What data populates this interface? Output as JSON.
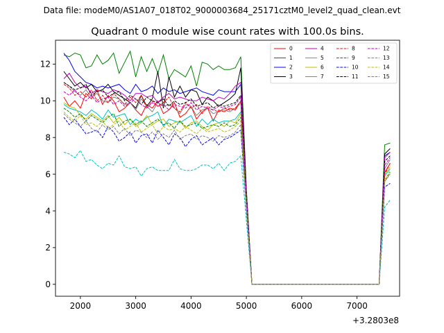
{
  "figure": {
    "suptitle": "Data file: modeM0/AS1A07_018T02_9000003684_25171cztM0_level2_quad_clean.evt"
  },
  "chart_data": {
    "type": "line",
    "title": "Quadrant 0 module wise count rates with 100.0s bins.",
    "xlabel": "",
    "ylabel": "",
    "x_offset_label": "+3.2803e8",
    "xlim": [
      1550,
      7770
    ],
    "ylim": [
      -0.65,
      13.3
    ],
    "xticks": [
      2000,
      3000,
      4000,
      5000,
      6000,
      7000
    ],
    "yticks": [
      0,
      2,
      4,
      6,
      8,
      10,
      12
    ],
    "legend": {
      "placement": "top-right",
      "columns": 4
    },
    "grid": false,
    "x": [
      1700,
      1800,
      1900,
      2000,
      2100,
      2200,
      2300,
      2400,
      2500,
      2600,
      2700,
      2800,
      2900,
      3000,
      3100,
      3200,
      3300,
      3400,
      3500,
      3600,
      3700,
      3800,
      3900,
      4000,
      4100,
      4200,
      4300,
      4400,
      4500,
      4600,
      4700,
      4800,
      4900,
      5000,
      5100,
      5200,
      5300,
      5400,
      5500,
      5600,
      5700,
      5800,
      5900,
      6000,
      6100,
      6200,
      6300,
      6400,
      6500,
      6600,
      6700,
      6800,
      6900,
      7000,
      7100,
      7200,
      7300,
      7400,
      7500,
      7600
    ],
    "series": [
      {
        "name": "0",
        "color": "#ff0000",
        "dash": "solid",
        "values": [
          10.2,
          9.7,
          10.0,
          9.6,
          10.4,
          10.1,
          10.6,
          9.8,
          10.3,
          10.0,
          9.4,
          9.6,
          9.9,
          9.5,
          9.2,
          9.8,
          9.6,
          10.0,
          9.3,
          9.5,
          9.9,
          9.1,
          9.3,
          9.7,
          9.0,
          9.4,
          9.6,
          8.9,
          9.5,
          9.4,
          9.6,
          9.5,
          10.0,
          4.8,
          0,
          0,
          0,
          0,
          0,
          0,
          0,
          0,
          0,
          0,
          0,
          0,
          0,
          0,
          0,
          0,
          0,
          0,
          0,
          0,
          0,
          0,
          0,
          0,
          6.1,
          6.6
        ]
      },
      {
        "name": "1",
        "color": "#008000",
        "dash": "solid",
        "values": [
          12.5,
          12.4,
          12.6,
          12.5,
          11.8,
          11.9,
          12.5,
          12.0,
          12.2,
          12.6,
          11.5,
          12.1,
          12.7,
          11.3,
          12.4,
          11.6,
          12.3,
          11.5,
          12.5,
          11.2,
          11.7,
          11.5,
          11.3,
          11.9,
          10.8,
          12.1,
          12.0,
          11.7,
          11.9,
          11.7,
          11.7,
          11.8,
          12.4,
          5.2,
          0,
          0,
          0,
          0,
          0,
          0,
          0,
          0,
          0,
          0,
          0,
          0,
          0,
          0,
          0,
          0,
          0,
          0,
          0,
          0,
          0,
          0,
          0,
          0,
          7.6,
          7.7
        ]
      },
      {
        "name": "2",
        "color": "#0000ff",
        "dash": "solid",
        "values": [
          12.6,
          12.2,
          11.6,
          11.3,
          11.0,
          10.9,
          10.7,
          10.8,
          10.7,
          10.8,
          10.9,
          10.6,
          10.4,
          10.9,
          10.5,
          10.6,
          10.8,
          10.4,
          10.7,
          10.5,
          10.6,
          10.4,
          10.5,
          10.6,
          10.7,
          10.5,
          10.4,
          10.3,
          10.6,
          10.5,
          10.5,
          10.5,
          10.9,
          5.0,
          0,
          0,
          0,
          0,
          0,
          0,
          0,
          0,
          0,
          0,
          0,
          0,
          0,
          0,
          0,
          0,
          0,
          0,
          0,
          0,
          0,
          0,
          0,
          0,
          7.0,
          7.2
        ]
      },
      {
        "name": "3",
        "color": "#000000",
        "dash": "solid",
        "values": [
          11.6,
          11.2,
          10.8,
          11.0,
          10.7,
          10.9,
          10.5,
          10.6,
          10.9,
          10.5,
          10.3,
          10.1,
          9.9,
          9.6,
          10.3,
          9.7,
          10.1,
          11.6,
          9.6,
          11.3,
          10.2,
          10.8,
          10.2,
          10.6,
          10.5,
          9.8,
          10.2,
          10.0,
          9.7,
          9.9,
          10.1,
          10.4,
          11.8,
          5.1,
          0,
          0,
          0,
          0,
          0,
          0,
          0,
          0,
          0,
          0,
          0,
          0,
          0,
          0,
          0,
          0,
          0,
          0,
          0,
          0,
          0,
          0,
          0,
          0,
          7.1,
          7.4
        ]
      },
      {
        "name": "4",
        "color": "#bf00bf",
        "dash": "solid",
        "values": [
          11.2,
          11.5,
          11.0,
          10.7,
          10.8,
          10.4,
          10.6,
          10.5,
          10.4,
          10.6,
          10.5,
          10.3,
          10.0,
          10.4,
          10.4,
          10.2,
          10.3,
          9.9,
          10.2,
          10.4,
          10.1,
          10.2,
          10.1,
          10.0,
          10.0,
          10.2,
          10.1,
          10.0,
          10.2,
          10.1,
          10.4,
          10.8,
          11.0,
          5.0,
          0,
          0,
          0,
          0,
          0,
          0,
          0,
          0,
          0,
          0,
          0,
          0,
          0,
          0,
          0,
          0,
          0,
          0,
          0,
          0,
          0,
          0,
          0,
          0,
          6.9,
          7.2
        ]
      },
      {
        "name": "5",
        "color": "#00bfbf",
        "dash": "solid",
        "values": [
          9.8,
          9.6,
          9.5,
          9.4,
          9.2,
          9.5,
          9.3,
          9.0,
          9.5,
          9.1,
          9.2,
          9.3,
          8.7,
          9.0,
          8.8,
          9.1,
          9.2,
          9.4,
          8.6,
          9.0,
          8.9,
          8.8,
          9.0,
          9.2,
          8.6,
          9.0,
          8.7,
          9.0,
          8.8,
          8.9,
          8.9,
          9.0,
          9.4,
          4.6,
          0,
          0,
          0,
          0,
          0,
          0,
          0,
          0,
          0,
          0,
          0,
          0,
          0,
          0,
          0,
          0,
          0,
          0,
          0,
          0,
          0,
          0,
          0,
          0,
          5.9,
          6.3
        ]
      },
      {
        "name": "6",
        "color": "#bfbf00",
        "dash": "solid",
        "values": [
          9.9,
          9.7,
          9.6,
          9.2,
          9.0,
          9.3,
          9.1,
          8.9,
          9.2,
          8.8,
          9.1,
          8.7,
          9.0,
          8.6,
          8.8,
          9.2,
          8.7,
          8.9,
          9.0,
          8.6,
          8.8,
          8.9,
          8.5,
          8.8,
          8.9,
          8.6,
          8.4,
          8.7,
          8.8,
          8.6,
          8.9,
          8.8,
          9.3,
          4.5,
          0,
          0,
          0,
          0,
          0,
          0,
          0,
          0,
          0,
          0,
          0,
          0,
          0,
          0,
          0,
          0,
          0,
          0,
          0,
          0,
          0,
          0,
          0,
          0,
          6.0,
          6.4
        ]
      },
      {
        "name": "7",
        "color": "#808080",
        "dash": "solid",
        "values": [
          11.0,
          10.8,
          10.5,
          10.3,
          10.6,
          10.2,
          10.4,
          10.0,
          9.9,
          10.2,
          10.1,
          9.8,
          9.9,
          9.5,
          10.1,
          9.7,
          9.4,
          9.9,
          9.7,
          9.8,
          9.6,
          9.3,
          9.8,
          9.7,
          9.2,
          9.5,
          9.6,
          9.3,
          9.4,
          9.5,
          9.4,
          9.6,
          10.0,
          4.9,
          0,
          0,
          0,
          0,
          0,
          0,
          0,
          0,
          0,
          0,
          0,
          0,
          0,
          0,
          0,
          0,
          0,
          0,
          0,
          0,
          0,
          0,
          0,
          0,
          6.3,
          6.8
        ]
      },
      {
        "name": "8",
        "color": "#ff0000",
        "dash": "dashed",
        "values": [
          10.9,
          10.7,
          10.3,
          10.5,
          10.2,
          10.6,
          10.0,
          10.3,
          9.9,
          10.4,
          10.1,
          9.8,
          10.2,
          9.9,
          10.3,
          9.6,
          10.0,
          9.7,
          9.9,
          10.2,
          9.6,
          9.4,
          9.9,
          9.6,
          9.8,
          9.3,
          9.7,
          9.5,
          9.4,
          9.6,
          9.5,
          9.6,
          9.9,
          4.8,
          0,
          0,
          0,
          0,
          0,
          0,
          0,
          0,
          0,
          0,
          0,
          0,
          0,
          0,
          0,
          0,
          0,
          0,
          0,
          0,
          0,
          0,
          0,
          0,
          6.0,
          6.6
        ]
      },
      {
        "name": "9",
        "color": "#008000",
        "dash": "dashed",
        "values": [
          9.6,
          9.4,
          9.1,
          9.3,
          8.9,
          9.2,
          9.0,
          8.8,
          9.1,
          9.3,
          8.6,
          8.9,
          9.0,
          8.7,
          8.9,
          8.6,
          8.8,
          9.0,
          8.7,
          8.8,
          8.5,
          8.9,
          8.6,
          8.7,
          8.8,
          8.5,
          8.6,
          8.7,
          8.6,
          8.8,
          8.6,
          8.7,
          9.1,
          4.4,
          0,
          0,
          0,
          0,
          0,
          0,
          0,
          0,
          0,
          0,
          0,
          0,
          0,
          0,
          0,
          0,
          0,
          0,
          0,
          0,
          0,
          0,
          0,
          0,
          5.6,
          6.1
        ]
      },
      {
        "name": "10",
        "color": "#0000ff",
        "dash": "dashed",
        "values": [
          9.1,
          8.7,
          9.0,
          8.6,
          8.2,
          8.3,
          8.4,
          8.0,
          8.6,
          8.3,
          7.8,
          8.0,
          8.3,
          7.7,
          8.1,
          8.2,
          7.7,
          8.4,
          8.0,
          7.6,
          8.2,
          8.0,
          7.5,
          7.9,
          8.1,
          7.6,
          7.8,
          8.0,
          7.6,
          7.9,
          8.0,
          8.2,
          8.4,
          4.1,
          0,
          0,
          0,
          0,
          0,
          0,
          0,
          0,
          0,
          0,
          0,
          0,
          0,
          0,
          0,
          0,
          0,
          0,
          0,
          0,
          0,
          0,
          0,
          0,
          5.3,
          5.5
        ]
      },
      {
        "name": "11",
        "color": "#000000",
        "dash": "dashed",
        "values": [
          11.0,
          10.8,
          10.6,
          10.7,
          10.9,
          10.3,
          10.5,
          10.6,
          10.2,
          10.4,
          10.5,
          10.0,
          10.3,
          10.1,
          9.8,
          10.2,
          10.0,
          9.9,
          10.1,
          9.7,
          10.0,
          9.8,
          9.9,
          10.1,
          9.7,
          9.8,
          9.9,
          9.6,
          9.8,
          9.7,
          9.8,
          9.9,
          10.3,
          5.0,
          0,
          0,
          0,
          0,
          0,
          0,
          0,
          0,
          0,
          0,
          0,
          0,
          0,
          0,
          0,
          0,
          0,
          0,
          0,
          0,
          0,
          0,
          0,
          0,
          6.7,
          7.0
        ]
      },
      {
        "name": "12",
        "color": "#bf00bf",
        "dash": "dashed",
        "values": [
          10.5,
          10.3,
          10.6,
          10.2,
          10.0,
          10.3,
          9.9,
          10.1,
          10.2,
          9.8,
          10.0,
          9.7,
          9.9,
          10.1,
          9.8,
          9.6,
          9.9,
          9.7,
          9.8,
          9.5,
          9.8,
          9.7,
          9.6,
          9.9,
          9.5,
          9.7,
          9.6,
          9.5,
          9.7,
          9.6,
          9.7,
          9.8,
          10.2,
          4.9,
          0,
          0,
          0,
          0,
          0,
          0,
          0,
          0,
          0,
          0,
          0,
          0,
          0,
          0,
          0,
          0,
          0,
          0,
          0,
          0,
          0,
          0,
          0,
          0,
          6.5,
          6.9
        ]
      },
      {
        "name": "13",
        "color": "#00bfbf",
        "dash": "dashed",
        "values": [
          7.2,
          7.1,
          6.9,
          7.3,
          6.7,
          6.8,
          6.5,
          6.3,
          6.6,
          6.5,
          7.0,
          6.4,
          6.3,
          6.4,
          5.9,
          6.3,
          6.4,
          6.2,
          6.2,
          6.2,
          6.8,
          6.3,
          6.2,
          6.2,
          6.3,
          6.5,
          6.5,
          6.3,
          6.6,
          6.2,
          6.6,
          6.7,
          7.0,
          3.5,
          0,
          0,
          0,
          0,
          0,
          0,
          0,
          0,
          0,
          0,
          0,
          0,
          0,
          0,
          0,
          0,
          0,
          0,
          0,
          0,
          0,
          0,
          0,
          0,
          4.2,
          4.6
        ]
      },
      {
        "name": "14",
        "color": "#bfbf00",
        "dash": "dashed",
        "values": [
          9.4,
          9.1,
          8.9,
          9.2,
          8.7,
          8.8,
          8.6,
          8.9,
          8.5,
          8.7,
          8.9,
          8.4,
          8.6,
          8.8,
          8.3,
          8.5,
          8.7,
          8.2,
          8.6,
          8.4,
          8.5,
          8.3,
          8.6,
          8.4,
          8.2,
          8.5,
          8.3,
          8.4,
          8.5,
          8.3,
          8.4,
          8.6,
          8.9,
          4.3,
          0,
          0,
          0,
          0,
          0,
          0,
          0,
          0,
          0,
          0,
          0,
          0,
          0,
          0,
          0,
          0,
          0,
          0,
          0,
          0,
          0,
          0,
          0,
          0,
          5.7,
          6.2
        ]
      },
      {
        "name": "15",
        "color": "#808080",
        "dash": "dashed",
        "values": [
          9.3,
          9.0,
          8.8,
          8.6,
          8.9,
          8.5,
          8.3,
          8.7,
          8.4,
          8.6,
          8.2,
          8.5,
          8.1,
          8.4,
          8.3,
          8.0,
          8.3,
          7.9,
          8.2,
          8.0,
          8.4,
          7.9,
          8.1,
          8.2,
          7.9,
          8.1,
          8.0,
          7.8,
          8.1,
          8.0,
          8.1,
          8.3,
          8.7,
          4.2,
          0,
          0,
          0,
          0,
          0,
          0,
          0,
          0,
          0,
          0,
          0,
          0,
          0,
          0,
          0,
          0,
          0,
          0,
          0,
          0,
          0,
          0,
          0,
          0,
          5.6,
          6.0
        ]
      }
    ]
  }
}
